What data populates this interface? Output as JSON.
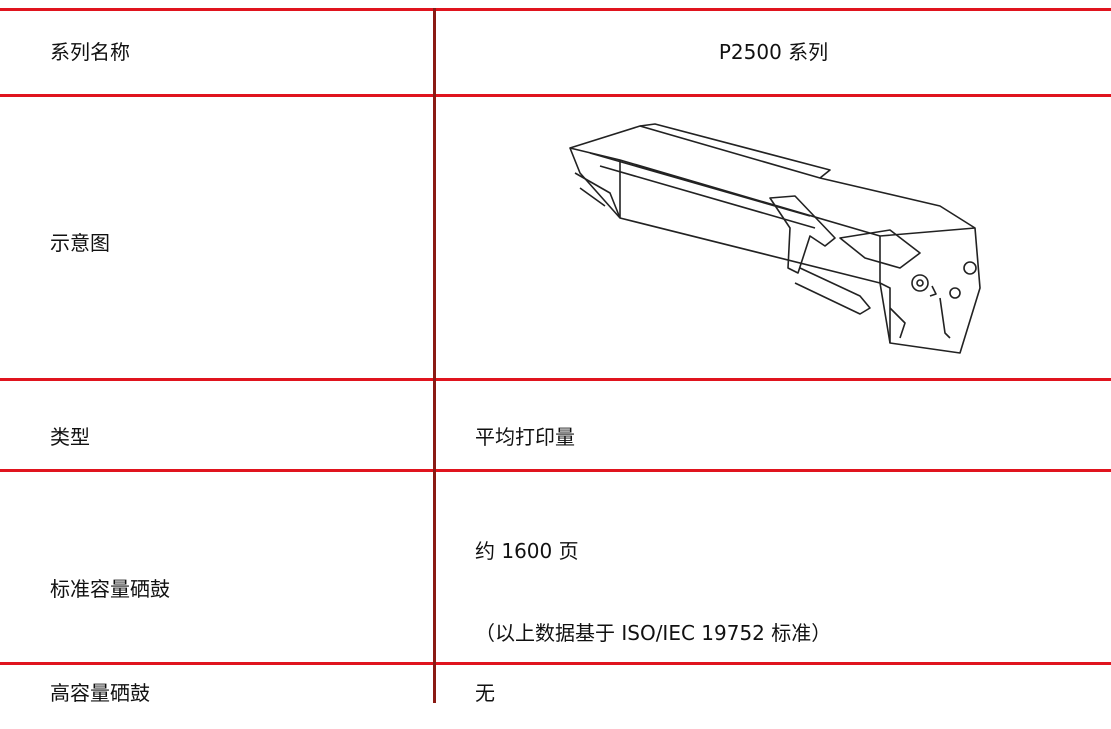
{
  "table": {
    "rows": [
      [
        "系列名称",
        "P2500 系列"
      ],
      [
        "示意图"
      ],
      [
        "类型",
        "平均打印量"
      ],
      [
        "标准容量硒鼓",
        "约  1600  页",
        "（以上数据基于 ISO/IEC 19752  标准）"
      ],
      [
        "高容量硒鼓",
        "无"
      ]
    ]
  }
}
